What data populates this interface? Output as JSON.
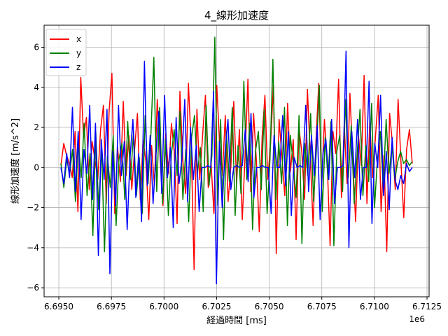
{
  "chart_data": {
    "type": "line",
    "title": "4_線形加速度",
    "xlabel": "経過時間 [ms]",
    "ylabel": "線形加速度 [m/s^2]",
    "x_offset_label": "1e6",
    "xlim": [
      6.6943,
      6.7126
    ],
    "ylim": [
      -6.45,
      7.1
    ],
    "x_ticks": [
      6.695,
      6.6975,
      6.7,
      6.7025,
      6.705,
      6.7075,
      6.71,
      6.7125
    ],
    "x_tick_labels": [
      "6.6950",
      "6.6975",
      "6.7000",
      "6.7025",
      "6.7050",
      "6.7075",
      "6.7100",
      "6.7125"
    ],
    "y_ticks": [
      -6,
      -4,
      -2,
      0,
      2,
      4,
      6
    ],
    "y_tick_labels": [
      "−6",
      "−4",
      "−2",
      "0",
      "2",
      "4",
      "6"
    ],
    "grid": true,
    "legend_position": "top-left",
    "x_range": [
      6.6951,
      6.7118
    ],
    "series": [
      {
        "name": "x",
        "color": "#ff0000",
        "values": [
          0.1,
          1.2,
          0.6,
          0.2,
          -0.5,
          1.8,
          -2.2,
          4.5,
          1.5,
          2.5,
          -1.1,
          1.3,
          0.4,
          -0.6,
          1.9,
          3.1,
          -1.8,
          2.8,
          4.7,
          -2.3,
          1.0,
          -0.7,
          3.3,
          -0.4,
          1.6,
          -1.1,
          0.9,
          2.7,
          -1.6,
          1.4,
          0.3,
          -2.6,
          1.1,
          -0.9,
          3.4,
          0.5,
          -1.9,
          1.7,
          -0.3,
          2.2,
          0.8,
          -2.8,
          3.8,
          0.4,
          -1.3,
          4.2,
          1.0,
          -5.1,
          2.9,
          -0.6,
          1.6,
          3.6,
          -1.0,
          0.2,
          -2.3,
          4.1,
          1.2,
          -0.4,
          2.6,
          -1.7,
          0.1,
          3.3,
          -0.8,
          1.9,
          -2.6,
          0.6,
          4.4,
          -1.2,
          2.7,
          0.3,
          -3.2,
          1.5,
          3.6,
          -0.6,
          1.2,
          4.1,
          -4.3,
          2.4,
          0.5,
          -1.4,
          3.2,
          -0.2,
          1.4,
          -3.6,
          2.0,
          0.8,
          -1.6,
          3.9,
          0.6,
          -2.9,
          1.3,
          4.2,
          -1.0,
          2.4,
          0.2,
          -3.9,
          1.8,
          0.7,
          4.4,
          -1.5,
          2.1,
          -0.8,
          3.7,
          0.4,
          -2.7,
          1.6,
          0.1,
          4.6,
          -1.8,
          2.3,
          -0.5,
          1.5,
          3.6,
          -2.2,
          0.6,
          -4.2,
          2.7,
          1.2,
          -1.1,
          3.4,
          0.3,
          -2.5,
          0.9,
          1.9,
          0.2
        ]
      },
      {
        "name": "y",
        "color": "#008000",
        "values": [
          0.2,
          -1.0,
          0.4,
          -0.3,
          0.9,
          -1.7,
          1.3,
          -0.5,
          2.2,
          -1.4,
          0.7,
          -3.4,
          1.8,
          -2.1,
          1.1,
          -4.2,
          0.6,
          -1.0,
          1.6,
          -2.9,
          0.4,
          1.2,
          -1.6,
          2.3,
          -0.6,
          1.8,
          -1.4,
          0.5,
          -2.3,
          2.6,
          -0.8,
          1.7,
          5.5,
          -1.2,
          3.0,
          -1.8,
          1.4,
          -2.4,
          0.6,
          1.9,
          -0.4,
          2.8,
          -1.6,
          0.9,
          -2.7,
          1.5,
          2.6,
          -0.3,
          1.0,
          -2.2,
          3.1,
          -0.9,
          0.6,
          6.5,
          -1.9,
          2.4,
          -3.6,
          1.8,
          -0.7,
          3.0,
          -2.4,
          1.1,
          -1.3,
          4.3,
          -0.6,
          2.2,
          -3.1,
          0.8,
          1.8,
          -1.1,
          2.9,
          -2.3,
          0.4,
          5.4,
          -1.6,
          1.3,
          -0.8,
          3.0,
          -2.9,
          1.6,
          0.2,
          -1.5,
          2.6,
          -3.8,
          1.2,
          -0.4,
          2.7,
          -1.7,
          0.9,
          4.1,
          -2.2,
          1.5,
          -0.6,
          2.3,
          -3.9,
          0.8,
          1.6,
          -1.2,
          3.4,
          -0.5,
          2.1,
          -1.8,
          0.6,
          2.9,
          -1.4,
          1.1,
          -0.7,
          3.2,
          -2.0,
          0.4,
          1.8,
          -1.0,
          2.4,
          -0.3,
          1.1,
          -0.6,
          0.3,
          0.8,
          0.2,
          0.4,
          0.1,
          0.3
        ]
      },
      {
        "name": "z",
        "color": "#0000ff",
        "values": [
          0.0,
          -0.8,
          0.7,
          -0.5,
          3.0,
          -1.2,
          1.8,
          -2.6,
          0.9,
          -0.3,
          3.1,
          -1.6,
          2.2,
          -4.4,
          1.4,
          -0.6,
          2.9,
          -5.3,
          0.8,
          -1.9,
          3.1,
          -0.4,
          1.3,
          -3.1,
          0.5,
          2.4,
          -1.5,
          0.7,
          -2.7,
          5.3,
          -0.9,
          1.6,
          -1.8,
          0.6,
          2.8,
          -1.3,
          3.6,
          -0.5,
          1.0,
          -3.0,
          2.5,
          -0.8,
          0.4,
          3.4,
          -1.7,
          2.0,
          -0.6,
          1.1,
          -2.2,
          0.0,
          0.0,
          0.1,
          0.0,
          3.8,
          -5.8,
          1.3,
          -2.0,
          0.8,
          2.4,
          -1.1,
          0.0,
          0.1,
          0.0,
          0.1,
          1.9,
          -0.7,
          2.7,
          -1.5,
          0.0,
          0.0,
          0.1,
          0.0,
          0.0,
          -2.3,
          1.6,
          0.0,
          0.0,
          2.6,
          -0.9,
          1.8,
          -2.4,
          0.5,
          0.0,
          0.1,
          0.0,
          3.1,
          -1.2,
          1.6,
          -0.4,
          2.1,
          -2.6,
          0.7,
          1.4,
          -0.6,
          2.4,
          -1.8,
          0.0,
          0.0,
          0.1,
          5.8,
          -4.0,
          1.8,
          -0.5,
          2.4,
          -1.6,
          0.0,
          0.0,
          4.3,
          -2.8,
          1.2,
          0.0,
          3.6,
          -1.4,
          0.8,
          -2.1,
          1.5,
          -0.6,
          -1.1,
          -0.4,
          -0.8,
          0.2,
          -0.2,
          0.0
        ]
      }
    ]
  }
}
